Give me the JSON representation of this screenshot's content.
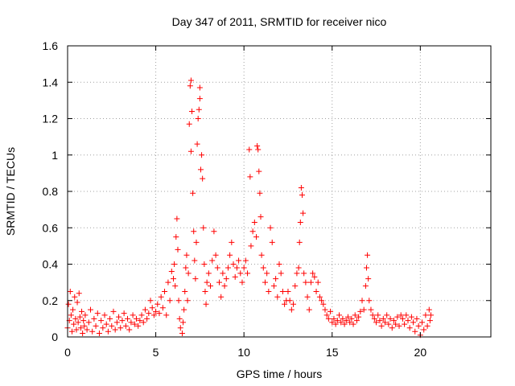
{
  "chart_data": {
    "type": "scatter",
    "title": "Day 347 of 2011, SRMTID for receiver nico",
    "xlabel": "GPS time / hours",
    "ylabel": "SRMTID / TECUs",
    "xlim": [
      0,
      24
    ],
    "ylim": [
      0,
      1.6
    ],
    "xticks": [
      0,
      5,
      10,
      15,
      20
    ],
    "yticks": [
      0,
      0.2,
      0.4,
      0.6,
      0.8,
      1,
      1.2,
      1.4,
      1.6
    ],
    "xtick_labels": [
      "0",
      "5",
      "10",
      "15",
      "20"
    ],
    "ytick_labels": [
      "0",
      "0.2",
      "0.4",
      "0.6",
      "0.8",
      "1",
      "1.2",
      "1.4",
      "1.6"
    ],
    "grid": true,
    "marker": "plus",
    "marker_color": "#ff0000",
    "series": [
      {
        "points": [
          [
            0.0,
            0.05
          ],
          [
            0.05,
            0.18
          ],
          [
            0.1,
            0.09
          ],
          [
            0.15,
            0.25
          ],
          [
            0.2,
            0.12
          ],
          [
            0.25,
            0.03
          ],
          [
            0.3,
            0.15
          ],
          [
            0.35,
            0.07
          ],
          [
            0.4,
            0.22
          ],
          [
            0.45,
            0.1
          ],
          [
            0.5,
            0.04
          ],
          [
            0.55,
            0.19
          ],
          [
            0.6,
            0.08
          ],
          [
            0.65,
            0.24
          ],
          [
            0.7,
            0.11
          ],
          [
            0.75,
            0.05
          ],
          [
            0.8,
            0.14
          ],
          [
            0.85,
            0.02
          ],
          [
            0.9,
            0.09
          ],
          [
            0.95,
            0.06
          ],
          [
            1.0,
            0.12
          ],
          [
            1.1,
            0.04
          ],
          [
            1.2,
            0.08
          ],
          [
            1.3,
            0.15
          ],
          [
            1.4,
            0.03
          ],
          [
            1.5,
            0.1
          ],
          [
            1.6,
            0.06
          ],
          [
            1.7,
            0.13
          ],
          [
            1.8,
            0.02
          ],
          [
            1.9,
            0.09
          ],
          [
            2.0,
            0.05
          ],
          [
            2.1,
            0.12
          ],
          [
            2.2,
            0.07
          ],
          [
            2.3,
            0.03
          ],
          [
            2.4,
            0.1
          ],
          [
            2.5,
            0.06
          ],
          [
            2.6,
            0.14
          ],
          [
            2.7,
            0.04
          ],
          [
            2.8,
            0.08
          ],
          [
            2.9,
            0.11
          ],
          [
            3.0,
            0.05
          ],
          [
            3.1,
            0.09
          ],
          [
            3.2,
            0.13
          ],
          [
            3.3,
            0.06
          ],
          [
            3.4,
            0.1
          ],
          [
            3.5,
            0.04
          ],
          [
            3.6,
            0.08
          ],
          [
            3.7,
            0.12
          ],
          [
            3.8,
            0.07
          ],
          [
            3.9,
            0.1
          ],
          [
            4.0,
            0.06
          ],
          [
            4.1,
            0.09
          ],
          [
            4.2,
            0.12
          ],
          [
            4.3,
            0.08
          ],
          [
            4.4,
            0.15
          ],
          [
            4.5,
            0.1
          ],
          [
            4.6,
            0.13
          ],
          [
            4.7,
            0.2
          ],
          [
            4.8,
            0.16
          ],
          [
            4.9,
            0.12
          ],
          [
            5.0,
            0.14
          ],
          [
            5.1,
            0.18
          ],
          [
            5.2,
            0.13
          ],
          [
            5.3,
            0.22
          ],
          [
            5.4,
            0.16
          ],
          [
            5.5,
            0.25
          ],
          [
            5.6,
            0.12
          ],
          [
            5.7,
            0.3
          ],
          [
            5.8,
            0.2
          ],
          [
            5.9,
            0.36
          ],
          [
            6.0,
            0.32
          ],
          [
            6.05,
            0.4
          ],
          [
            6.1,
            0.28
          ],
          [
            6.15,
            0.55
          ],
          [
            6.2,
            0.65
          ],
          [
            6.25,
            0.48
          ],
          [
            6.3,
            0.2
          ],
          [
            6.35,
            0.1
          ],
          [
            6.4,
            0.05
          ],
          [
            6.5,
            0.02
          ],
          [
            6.55,
            0.08
          ],
          [
            6.6,
            0.15
          ],
          [
            6.65,
            0.25
          ],
          [
            6.7,
            0.38
          ],
          [
            6.75,
            0.45
          ],
          [
            6.8,
            0.2
          ],
          [
            6.85,
            0.35
          ],
          [
            6.9,
            1.17
          ],
          [
            6.95,
            1.38
          ],
          [
            7.0,
            1.41
          ],
          [
            7.0,
            1.02
          ],
          [
            7.05,
            1.24
          ],
          [
            7.1,
            0.79
          ],
          [
            7.15,
            0.58
          ],
          [
            7.2,
            0.42
          ],
          [
            7.25,
            0.32
          ],
          [
            7.3,
            0.52
          ],
          [
            7.35,
            1.06
          ],
          [
            7.4,
            1.2
          ],
          [
            7.45,
            1.25
          ],
          [
            7.5,
            1.37
          ],
          [
            7.5,
            1.31
          ],
          [
            7.55,
            0.92
          ],
          [
            7.6,
            1.0
          ],
          [
            7.65,
            0.87
          ],
          [
            7.7,
            0.6
          ],
          [
            7.75,
            0.4
          ],
          [
            7.8,
            0.25
          ],
          [
            7.85,
            0.18
          ],
          [
            7.9,
            0.3
          ],
          [
            8.0,
            0.35
          ],
          [
            8.1,
            0.28
          ],
          [
            8.2,
            0.42
          ],
          [
            8.3,
            0.58
          ],
          [
            8.4,
            0.45
          ],
          [
            8.5,
            0.38
          ],
          [
            8.6,
            0.3
          ],
          [
            8.7,
            0.22
          ],
          [
            8.8,
            0.35
          ],
          [
            8.9,
            0.28
          ],
          [
            9.0,
            0.32
          ],
          [
            9.1,
            0.38
          ],
          [
            9.2,
            0.45
          ],
          [
            9.3,
            0.52
          ],
          [
            9.4,
            0.4
          ],
          [
            9.5,
            0.33
          ],
          [
            9.6,
            0.38
          ],
          [
            9.7,
            0.42
          ],
          [
            9.8,
            0.35
          ],
          [
            9.9,
            0.3
          ],
          [
            10.0,
            0.38
          ],
          [
            10.1,
            0.42
          ],
          [
            10.2,
            0.35
          ],
          [
            10.3,
            1.03
          ],
          [
            10.35,
            0.88
          ],
          [
            10.4,
            0.5
          ],
          [
            10.5,
            0.58
          ],
          [
            10.6,
            0.63
          ],
          [
            10.7,
            0.55
          ],
          [
            10.75,
            1.05
          ],
          [
            10.8,
            1.03
          ],
          [
            10.85,
            0.91
          ],
          [
            10.9,
            0.79
          ],
          [
            10.95,
            0.66
          ],
          [
            11.0,
            0.45
          ],
          [
            11.1,
            0.38
          ],
          [
            11.2,
            0.3
          ],
          [
            11.3,
            0.35
          ],
          [
            11.4,
            0.25
          ],
          [
            11.5,
            0.6
          ],
          [
            11.6,
            0.52
          ],
          [
            11.7,
            0.28
          ],
          [
            11.8,
            0.32
          ],
          [
            11.9,
            0.22
          ],
          [
            12.0,
            0.4
          ],
          [
            12.1,
            0.35
          ],
          [
            12.2,
            0.25
          ],
          [
            12.3,
            0.18
          ],
          [
            12.4,
            0.2
          ],
          [
            12.5,
            0.25
          ],
          [
            12.6,
            0.2
          ],
          [
            12.7,
            0.15
          ],
          [
            12.8,
            0.18
          ],
          [
            12.9,
            0.28
          ],
          [
            13.0,
            0.35
          ],
          [
            13.1,
            0.38
          ],
          [
            13.15,
            0.52
          ],
          [
            13.2,
            0.63
          ],
          [
            13.25,
            0.82
          ],
          [
            13.3,
            0.78
          ],
          [
            13.35,
            0.68
          ],
          [
            13.4,
            0.35
          ],
          [
            13.5,
            0.3
          ],
          [
            13.6,
            0.22
          ],
          [
            13.7,
            0.15
          ],
          [
            13.8,
            0.3
          ],
          [
            13.9,
            0.35
          ],
          [
            14.0,
            0.33
          ],
          [
            14.1,
            0.25
          ],
          [
            14.2,
            0.3
          ],
          [
            14.3,
            0.22
          ],
          [
            14.4,
            0.2
          ],
          [
            14.5,
            0.18
          ],
          [
            14.6,
            0.15
          ],
          [
            14.7,
            0.12
          ],
          [
            14.8,
            0.1
          ],
          [
            14.9,
            0.14
          ],
          [
            15.0,
            0.08
          ],
          [
            15.1,
            0.1
          ],
          [
            15.2,
            0.07
          ],
          [
            15.3,
            0.09
          ],
          [
            15.4,
            0.12
          ],
          [
            15.5,
            0.08
          ],
          [
            15.6,
            0.1
          ],
          [
            15.7,
            0.07
          ],
          [
            15.8,
            0.09
          ],
          [
            15.9,
            0.11
          ],
          [
            16.0,
            0.08
          ],
          [
            16.1,
            0.1
          ],
          [
            16.2,
            0.07
          ],
          [
            16.3,
            0.12
          ],
          [
            16.4,
            0.09
          ],
          [
            16.5,
            0.11
          ],
          [
            16.6,
            0.14
          ],
          [
            16.7,
            0.2
          ],
          [
            16.8,
            0.15
          ],
          [
            16.9,
            0.28
          ],
          [
            16.95,
            0.38
          ],
          [
            17.0,
            0.45
          ],
          [
            17.05,
            0.32
          ],
          [
            17.1,
            0.2
          ],
          [
            17.2,
            0.15
          ],
          [
            17.3,
            0.12
          ],
          [
            17.4,
            0.1
          ],
          [
            17.5,
            0.08
          ],
          [
            17.6,
            0.12
          ],
          [
            17.7,
            0.09
          ],
          [
            17.8,
            0.06
          ],
          [
            17.9,
            0.1
          ],
          [
            18.0,
            0.08
          ],
          [
            18.1,
            0.12
          ],
          [
            18.2,
            0.07
          ],
          [
            18.3,
            0.1
          ],
          [
            18.4,
            0.05
          ],
          [
            18.5,
            0.09
          ],
          [
            18.6,
            0.07
          ],
          [
            18.7,
            0.11
          ],
          [
            18.8,
            0.06
          ],
          [
            18.9,
            0.12
          ],
          [
            19.0,
            0.1
          ],
          [
            19.1,
            0.07
          ],
          [
            19.2,
            0.12
          ],
          [
            19.3,
            0.09
          ],
          [
            19.4,
            0.05
          ],
          [
            19.5,
            0.11
          ],
          [
            19.6,
            0.08
          ],
          [
            19.7,
            0.03
          ],
          [
            19.8,
            0.1
          ],
          [
            19.9,
            0.06
          ],
          [
            20.0,
            0.01
          ],
          [
            20.1,
            0.08
          ],
          [
            20.2,
            0.04
          ],
          [
            20.3,
            0.12
          ],
          [
            20.4,
            0.06
          ],
          [
            20.5,
            0.15
          ],
          [
            20.55,
            0.09
          ],
          [
            20.6,
            0.12
          ]
        ]
      }
    ]
  }
}
